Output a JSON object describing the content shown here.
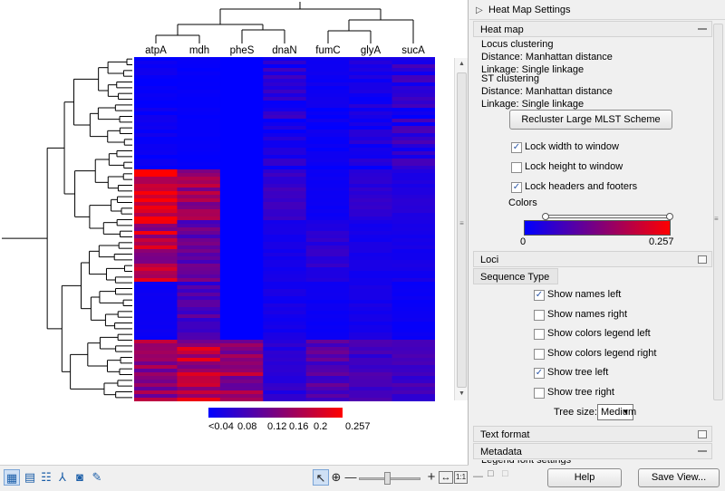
{
  "view": {
    "genes": [
      "atpA",
      "mdh",
      "pheS",
      "dnaN",
      "fumC",
      "glyA",
      "sucA"
    ],
    "legend": {
      "ticks": [
        "<0.04",
        "0.08",
        "0.12",
        "0.16",
        "0.2",
        "0.257"
      ],
      "gradient_colors": [
        "#0000ff",
        "#7a0080",
        "#ff0000"
      ]
    },
    "vscroll_grip": "≡"
  },
  "toolbar": {
    "icons": [
      "table-view-icon",
      "grid-view-icon",
      "list-view-icon",
      "tree-view-icon",
      "info-icon",
      "edit-icon"
    ],
    "cursor_glyph": "↖",
    "zoom_in_glyph": "⊕",
    "zoom_out_glyph": "—",
    "zoom_plus_glyph": "+",
    "fit_width_glyph": "↔",
    "one_to_one_glyph": "1:1"
  },
  "panel": {
    "title": "Heat Map Settings",
    "heatmap_section": {
      "header": "Heat map",
      "lines": [
        "Locus clustering",
        "Distance: Manhattan distance",
        "Linkage: Single linkage",
        "ST clustering",
        "Distance: Manhattan distance",
        "Linkage: Single linkage"
      ],
      "recluster_button": "Recluster Large MLST Scheme",
      "lock_width": {
        "label": "Lock width to window",
        "checked": true
      },
      "lock_height": {
        "label": "Lock height to window",
        "checked": false
      },
      "lock_headers": {
        "label": "Lock headers and footers",
        "checked": true
      },
      "colors_label": "Colors",
      "color_min": "0",
      "color_max": "0.257",
      "color_stops": [
        "#0000ff",
        "#7c007e",
        "#ff0000"
      ]
    },
    "loci_section": {
      "header": "Loci"
    },
    "sequence_type_section": {
      "header": "Sequence Type",
      "options": [
        {
          "label": "Show names left",
          "checked": true
        },
        {
          "label": "Show names right",
          "checked": false
        },
        {
          "label": "Show colors legend left",
          "checked": false
        },
        {
          "label": "Show colors legend right",
          "checked": false
        },
        {
          "label": "Show tree left",
          "checked": true
        },
        {
          "label": "Show tree right",
          "checked": false
        }
      ],
      "tree_size_label": "Tree size:",
      "tree_size_value": "Medium"
    },
    "text_format_section": {
      "header": "Text format"
    },
    "metadata_section": {
      "header": "Metadata"
    },
    "partial_row": "Legend font settings",
    "help_button": "Help",
    "save_view_button": "Save View...",
    "check_glyph": "✓"
  }
}
